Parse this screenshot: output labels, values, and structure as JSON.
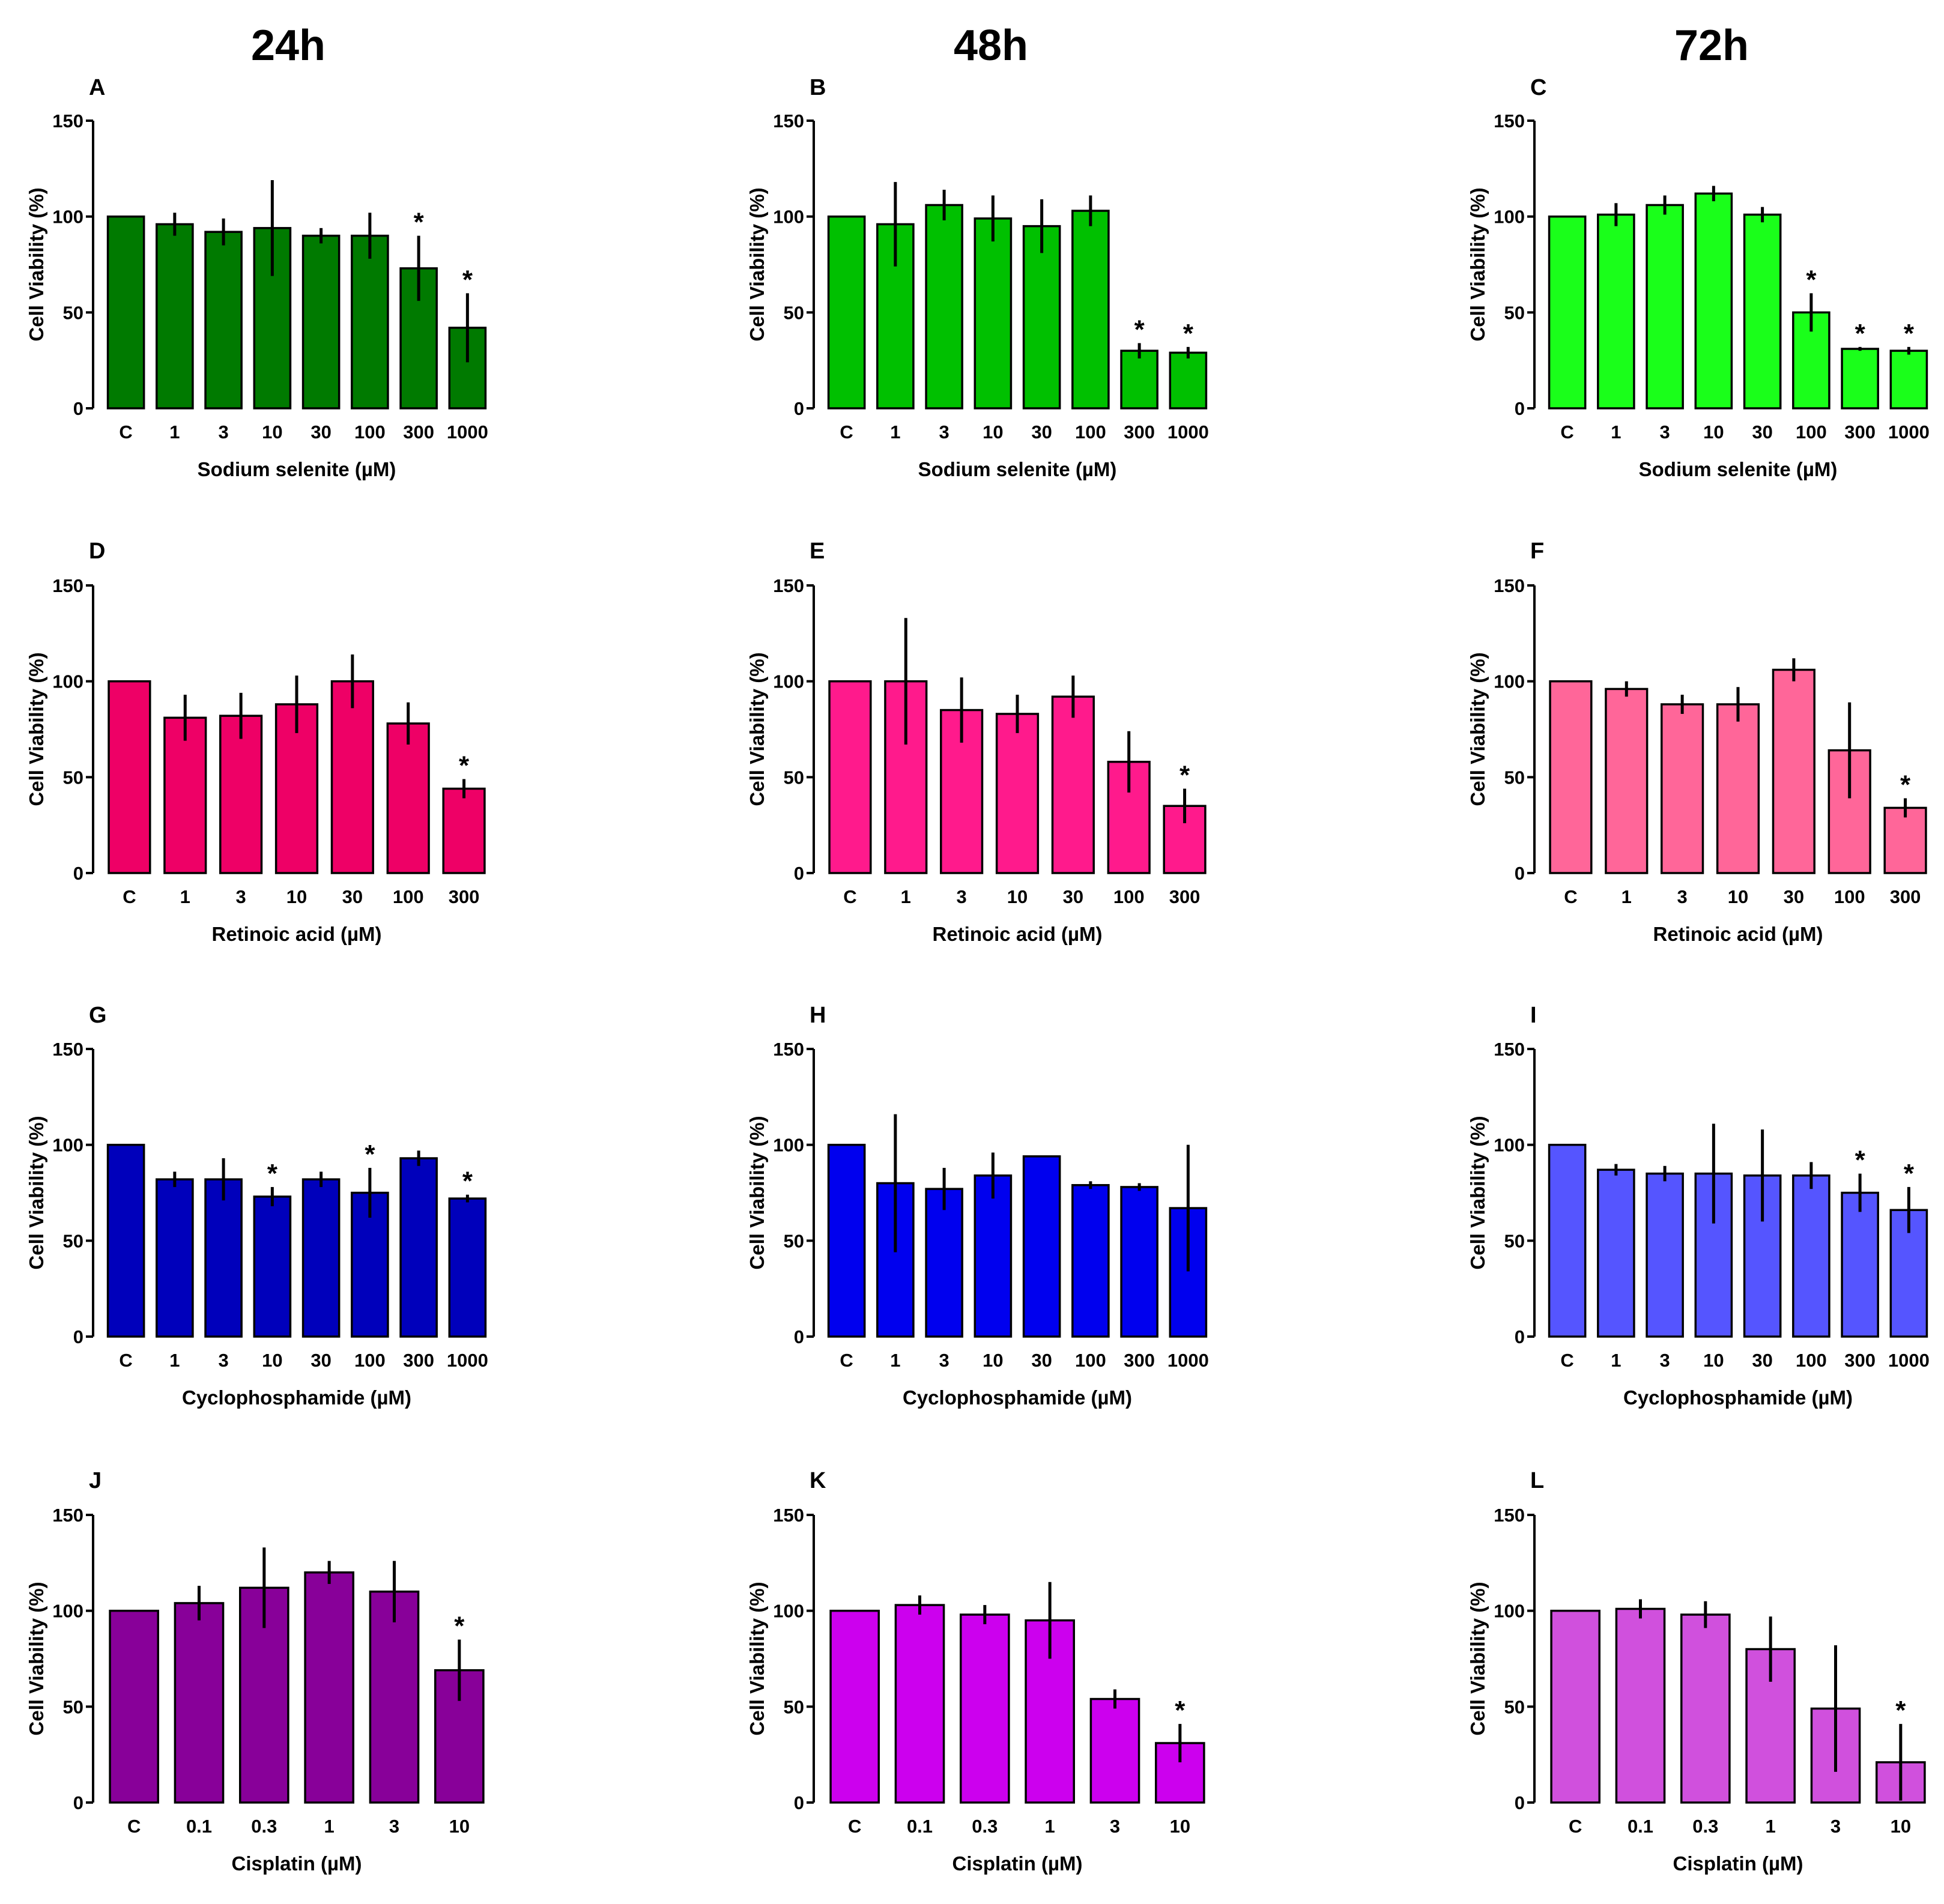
{
  "column_titles": [
    "24h",
    "48h",
    "72h"
  ],
  "chart_data": [
    {
      "panel": "A",
      "type": "bar",
      "column": 0,
      "row": 0,
      "title": "",
      "xlabel": "Sodium selenite (µM)",
      "ylabel": "Cell Viability  (%)",
      "ylim": [
        0,
        150
      ],
      "yticks": [
        0,
        50,
        100,
        150
      ],
      "color": "#007a00",
      "categories": [
        "C",
        "1",
        "3",
        "10",
        "30",
        "100",
        "300",
        "1000"
      ],
      "values": [
        100,
        96,
        92,
        94,
        90,
        90,
        73,
        42
      ],
      "errors": [
        0,
        6,
        7,
        25,
        4,
        12,
        17,
        18
      ],
      "significance": [
        "",
        "",
        "",
        "",
        "",
        "",
        "*",
        "*"
      ]
    },
    {
      "panel": "B",
      "type": "bar",
      "column": 1,
      "row": 0,
      "title": "",
      "xlabel": "Sodium selenite (µM)",
      "ylabel": "Cell Viability  (%)",
      "ylim": [
        0,
        150
      ],
      "yticks": [
        0,
        50,
        100,
        150
      ],
      "color": "#00c000",
      "categories": [
        "C",
        "1",
        "3",
        "10",
        "30",
        "100",
        "300",
        "1000"
      ],
      "values": [
        100,
        96,
        106,
        99,
        95,
        103,
        30,
        29
      ],
      "errors": [
        0,
        22,
        8,
        12,
        14,
        8,
        4,
        3
      ],
      "significance": [
        "",
        "",
        "",
        "",
        "",
        "",
        "*",
        "*"
      ]
    },
    {
      "panel": "C",
      "type": "bar",
      "column": 2,
      "row": 0,
      "title": "",
      "xlabel": "Sodium selenite (µM)",
      "ylabel": "Cell Viability  (%)",
      "ylim": [
        0,
        150
      ],
      "yticks": [
        0,
        50,
        100,
        150
      ],
      "color": "#1aff1a",
      "categories": [
        "C",
        "1",
        "3",
        "10",
        "30",
        "100",
        "300",
        "1000"
      ],
      "values": [
        100,
        101,
        106,
        112,
        101,
        50,
        31,
        30
      ],
      "errors": [
        0,
        6,
        5,
        4,
        4,
        10,
        1,
        2
      ],
      "significance": [
        "",
        "",
        "",
        "",
        "",
        "*",
        "*",
        "*"
      ]
    },
    {
      "panel": "D",
      "type": "bar",
      "column": 0,
      "row": 1,
      "title": "",
      "xlabel": "Retinoic acid (µM)",
      "ylabel": "Cell Viability  (%)",
      "ylim": [
        0,
        150
      ],
      "yticks": [
        0,
        50,
        100,
        150
      ],
      "color": "#ee0066",
      "categories": [
        "C",
        "1",
        "3",
        "10",
        "30",
        "100",
        "300"
      ],
      "values": [
        100,
        81,
        82,
        88,
        100,
        78,
        44
      ],
      "errors": [
        0,
        12,
        12,
        15,
        14,
        11,
        5
      ],
      "significance": [
        "",
        "",
        "",
        "",
        "",
        "",
        "*"
      ]
    },
    {
      "panel": "E",
      "type": "bar",
      "column": 1,
      "row": 1,
      "title": "",
      "xlabel": "Retinoic acid (µM)",
      "ylabel": "Cell Viability  (%)",
      "ylim": [
        0,
        150
      ],
      "yticks": [
        0,
        50,
        100,
        150
      ],
      "color": "#ff1a8c",
      "categories": [
        "C",
        "1",
        "3",
        "10",
        "30",
        "100",
        "300"
      ],
      "values": [
        100,
        100,
        85,
        83,
        92,
        58,
        35
      ],
      "errors": [
        0,
        33,
        17,
        10,
        11,
        16,
        9
      ],
      "significance": [
        "",
        "",
        "",
        "",
        "",
        "",
        "*"
      ]
    },
    {
      "panel": "F",
      "type": "bar",
      "column": 2,
      "row": 1,
      "title": "",
      "xlabel": "Retinoic acid (µM)",
      "ylabel": "Cell Viability  (%)",
      "ylim": [
        0,
        150
      ],
      "yticks": [
        0,
        50,
        100,
        150
      ],
      "color": "#ff6699",
      "categories": [
        "C",
        "1",
        "3",
        "10",
        "30",
        "100",
        "300"
      ],
      "values": [
        100,
        96,
        88,
        88,
        106,
        64,
        34
      ],
      "errors": [
        0,
        4,
        5,
        9,
        6,
        25,
        5
      ],
      "significance": [
        "",
        "",
        "",
        "",
        "",
        "",
        "*"
      ]
    },
    {
      "panel": "G",
      "type": "bar",
      "column": 0,
      "row": 2,
      "title": "",
      "xlabel": "Cyclophosphamide (µM)",
      "ylabel": "Cell Viability  (%)",
      "ylim": [
        0,
        150
      ],
      "yticks": [
        0,
        50,
        100,
        150
      ],
      "color": "#0000bb",
      "categories": [
        "C",
        "1",
        "3",
        "10",
        "30",
        "100",
        "300",
        "1000"
      ],
      "values": [
        100,
        82,
        82,
        73,
        82,
        75,
        93,
        72
      ],
      "errors": [
        0,
        4,
        11,
        5,
        4,
        13,
        4,
        2
      ],
      "significance": [
        "",
        "",
        "",
        "*",
        "",
        "*",
        "",
        "*"
      ]
    },
    {
      "panel": "H",
      "type": "bar",
      "column": 1,
      "row": 2,
      "title": "",
      "xlabel": "Cyclophosphamide (µM)",
      "ylabel": "Cell Viability  (%)",
      "ylim": [
        0,
        150
      ],
      "yticks": [
        0,
        50,
        100,
        150
      ],
      "color": "#0000ee",
      "categories": [
        "C",
        "1",
        "3",
        "10",
        "30",
        "100",
        "300",
        "1000"
      ],
      "values": [
        100,
        80,
        77,
        84,
        94,
        79,
        78,
        67
      ],
      "errors": [
        0,
        36,
        11,
        12,
        0,
        2,
        2,
        33
      ],
      "significance": [
        "",
        "",
        "",
        "",
        "",
        "",
        "",
        ""
      ]
    },
    {
      "panel": "I",
      "type": "bar",
      "column": 2,
      "row": 2,
      "title": "",
      "xlabel": "Cyclophosphamide (µM)",
      "ylabel": "Cell Viability  (%)",
      "ylim": [
        0,
        150
      ],
      "yticks": [
        0,
        50,
        100,
        150
      ],
      "color": "#5555ff",
      "categories": [
        "C",
        "1",
        "3",
        "10",
        "30",
        "100",
        "300",
        "1000"
      ],
      "values": [
        100,
        87,
        85,
        85,
        84,
        84,
        75,
        66
      ],
      "errors": [
        0,
        3,
        4,
        26,
        24,
        7,
        10,
        12
      ],
      "significance": [
        "",
        "",
        "",
        "",
        "",
        "",
        "*",
        "*"
      ]
    },
    {
      "panel": "J",
      "type": "bar",
      "column": 0,
      "row": 3,
      "title": "",
      "xlabel": "Cisplatin (µM)",
      "ylabel": "Cell Viability  (%)",
      "ylim": [
        0,
        150
      ],
      "yticks": [
        0,
        50,
        100,
        150
      ],
      "color": "#880099",
      "categories": [
        "C",
        "0.1",
        "0.3",
        "1",
        "3",
        "10"
      ],
      "values": [
        100,
        104,
        112,
        120,
        110,
        69
      ],
      "errors": [
        0,
        9,
        21,
        6,
        16,
        16
      ],
      "significance": [
        "",
        "",
        "",
        "",
        "",
        "*"
      ]
    },
    {
      "panel": "K",
      "type": "bar",
      "column": 1,
      "row": 3,
      "title": "",
      "xlabel": "Cisplatin (µM)",
      "ylabel": "Cell Viability  (%)",
      "ylim": [
        0,
        150
      ],
      "yticks": [
        0,
        50,
        100,
        150
      ],
      "color": "#cc00ee",
      "categories": [
        "C",
        "0.1",
        "0.3",
        "1",
        "3",
        "10"
      ],
      "values": [
        100,
        103,
        98,
        95,
        54,
        31
      ],
      "errors": [
        0,
        5,
        5,
        20,
        5,
        10
      ],
      "significance": [
        "",
        "",
        "",
        "",
        "",
        "*"
      ]
    },
    {
      "panel": "L",
      "type": "bar",
      "column": 2,
      "row": 3,
      "title": "",
      "xlabel": "Cisplatin (µM)",
      "ylabel": "Cell Viability  (%)",
      "ylim": [
        0,
        150
      ],
      "yticks": [
        0,
        50,
        100,
        150
      ],
      "color": "#d050dd",
      "categories": [
        "C",
        "0.1",
        "0.3",
        "1",
        "3",
        "10"
      ],
      "values": [
        100,
        101,
        98,
        80,
        49,
        21
      ],
      "errors": [
        0,
        5,
        7,
        17,
        33,
        20
      ],
      "significance": [
        "",
        "",
        "",
        "",
        "",
        "*"
      ]
    }
  ]
}
